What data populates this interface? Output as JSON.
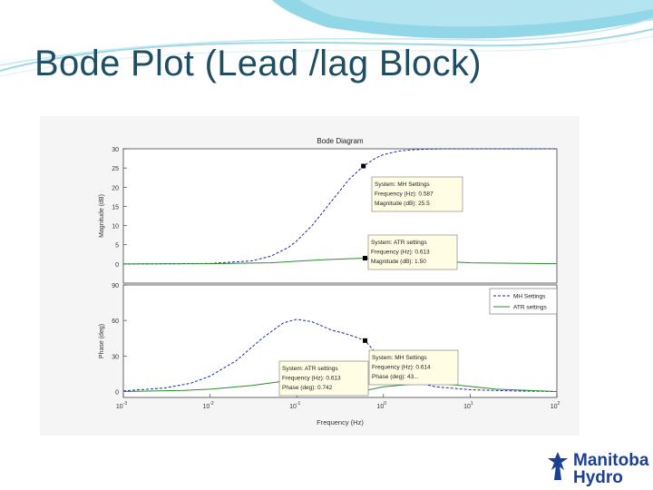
{
  "slide": {
    "title": "Bode Plot (Lead /lag Block)"
  },
  "brand": {
    "line1": "Manitoba",
    "line2": "Hydro",
    "logo_icon": "manitoba-hydro-tower-icon",
    "color": "#1b3f91"
  },
  "colors": {
    "mh_series": "#1a2aa8",
    "atr_series": "#2e8b2e",
    "title": "#1f4e63"
  },
  "chart_data": [
    {
      "type": "line",
      "title": "Bode Diagram",
      "xlabel": "",
      "ylabel": "Magnitude (dB)",
      "xscale": "log",
      "xlim": [
        0.001,
        100
      ],
      "ylim": [
        -5,
        30
      ],
      "yticks": [
        "30",
        "25",
        "20",
        "15",
        "10",
        "5",
        "0"
      ],
      "ytick_values": [
        30,
        25,
        20,
        15,
        10,
        5,
        0
      ],
      "series": [
        {
          "key": "mh",
          "x": [
            0.001,
            0.01,
            0.03,
            0.05,
            0.08,
            0.1,
            0.15,
            0.2,
            0.3,
            0.4,
            0.587,
            0.8,
            1,
            1.5,
            2,
            3,
            5,
            10,
            100
          ],
          "y": [
            0,
            0.1,
            0.8,
            2,
            4.3,
            6,
            10,
            13.5,
            18.5,
            22,
            25.5,
            27.5,
            28.5,
            29.4,
            29.7,
            29.9,
            30,
            30,
            30
          ]
        },
        {
          "key": "atr",
          "x": [
            0.001,
            0.01,
            0.05,
            0.1,
            0.2,
            0.4,
            0.613,
            1,
            2,
            5,
            10,
            100
          ],
          "y": [
            0,
            0.05,
            0.3,
            0.7,
            1.1,
            1.35,
            1.5,
            1.4,
            1.1,
            0.6,
            0.3,
            0.05
          ]
        }
      ],
      "datatips": [
        {
          "lines": [
            "System: MH Settings",
            "Frequency (Hz): 0.587",
            "Magnitude (dB): 25.5"
          ],
          "x": 0.587,
          "y": 25.5
        },
        {
          "lines": [
            "System: ATR settings",
            "Frequency (Hz): 0.613",
            "Magnitude (dB): 1.50"
          ],
          "x": 0.613,
          "y": 1.5
        }
      ]
    },
    {
      "type": "line",
      "title": "",
      "xlabel": "Frequency (Hz)",
      "ylabel": "Phase (deg)",
      "xscale": "log",
      "xlim": [
        0.001,
        100
      ],
      "ylim": [
        -5,
        90
      ],
      "yticks": [
        "90",
        "60",
        "30",
        "0"
      ],
      "ytick_values": [
        90,
        60,
        30,
        0
      ],
      "xticks": [
        "10",
        "10",
        "10",
        "10",
        "10",
        "10"
      ],
      "xtick_exponents": [
        "-3",
        "-2",
        "-1",
        "0",
        "1",
        "2"
      ],
      "xtick_values": [
        0.001,
        0.01,
        0.1,
        1,
        10,
        100
      ],
      "series": [
        {
          "key": "mh",
          "name": "MH Settings",
          "x": [
            0.001,
            0.003,
            0.006,
            0.01,
            0.02,
            0.04,
            0.07,
            0.1,
            0.15,
            0.25,
            0.4,
            0.614,
            1,
            1.5,
            2,
            4,
            10,
            30,
            100
          ],
          "y": [
            0.5,
            3,
            7,
            13,
            26,
            45,
            58,
            61,
            59,
            52,
            48,
            43,
            25,
            14,
            9,
            4,
            1.5,
            0.5,
            0
          ]
        },
        {
          "key": "atr",
          "name": "ATR settings",
          "x": [
            0.001,
            0.005,
            0.01,
            0.03,
            0.06,
            0.1,
            0.2,
            0.4,
            0.613,
            1,
            2,
            4,
            8,
            20,
            100
          ],
          "y": [
            0,
            1,
            2,
            5,
            8,
            10,
            10,
            9,
            0.742,
            4,
            6,
            7,
            5,
            2,
            0
          ]
        }
      ],
      "legend": {
        "placement": "top-right",
        "entries": [
          "MH Settings",
          "ATR settings"
        ]
      },
      "datatips": [
        {
          "lines": [
            "System: MH Settings",
            "Frequency (Hz): 0.614",
            "Phase (deg): 43..."
          ],
          "x": 0.614,
          "y": 43
        },
        {
          "lines": [
            "System: ATR settings",
            "Frequency (Hz): 0.613",
            "Phase (deg): 0.742"
          ],
          "x": 0.613,
          "y": 0.742
        }
      ]
    }
  ]
}
